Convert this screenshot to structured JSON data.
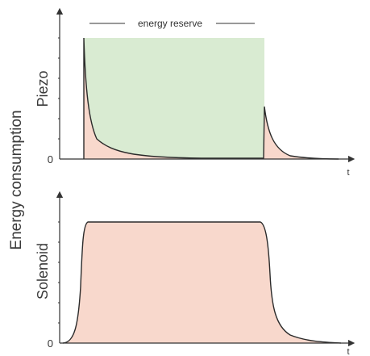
{
  "figure": {
    "ylabel": "Energy consumption",
    "reserve_label": "energy reserve",
    "colors": {
      "consumption_fill": "#f8d8cc",
      "reserve_fill": "#d9ebd2",
      "curve": "#2b2b2b",
      "axis": "#333333"
    }
  },
  "panels": [
    {
      "id": "piezo",
      "label": "Piezo",
      "zero_label": "0",
      "x_label": "t"
    },
    {
      "id": "solenoid",
      "label": "Solenoid",
      "zero_label": "0",
      "x_label": "t"
    }
  ]
}
